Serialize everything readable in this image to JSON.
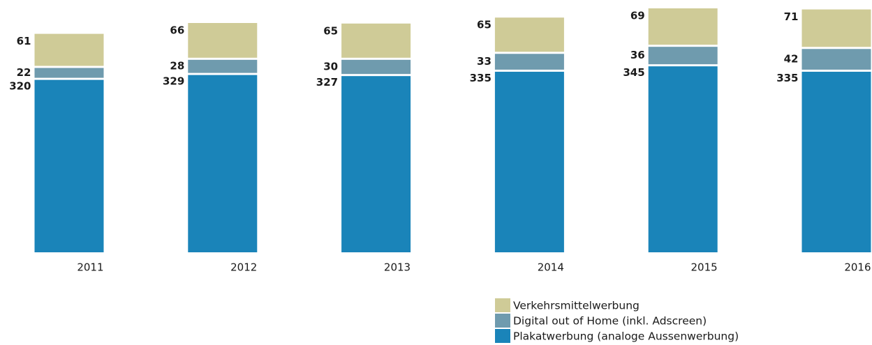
{
  "chart_data": {
    "type": "stacked-bar",
    "categories": [
      "2011",
      "2012",
      "2013",
      "2014",
      "2015",
      "2016"
    ],
    "series": [
      {
        "name": "Verkehrsmittelwerbung",
        "color": "#cfcb97",
        "values": [
          61,
          66,
          65,
          65,
          69,
          71
        ]
      },
      {
        "name": "Digital out of Home (inkl. Adscreen)",
        "color": "#6f9bae",
        "values": [
          22,
          28,
          30,
          33,
          36,
          42
        ]
      },
      {
        "name": "Plakatwerbung (analoge Aussenwerbung)",
        "color": "#1a84b9",
        "values": [
          320,
          329,
          327,
          335,
          345,
          335
        ]
      }
    ]
  }
}
